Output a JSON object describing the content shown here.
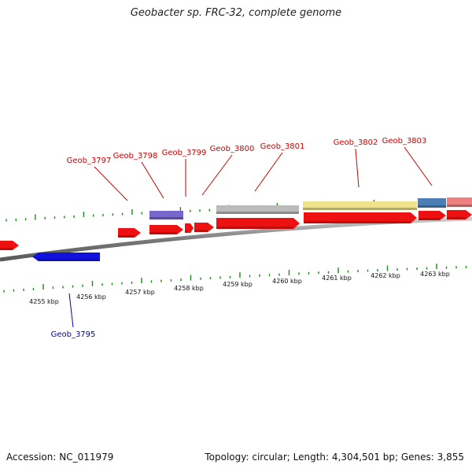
{
  "title": "Geobacter sp. FRC-32, complete genome",
  "footer": {
    "accession": "Accession: NC_011979",
    "summary": "Topology: circular; Length: 4,304,501 bp; Genes: 3,855"
  },
  "colors": {
    "tick": "#1a8a1a",
    "backbone": "#8c8c8c",
    "forward_gene": "#ee1111",
    "reverse_gene": "#1111dd",
    "forward_label": "#cc0000",
    "reverse_label": "#0000bb"
  },
  "scale": {
    "labels": [
      {
        "text": "4255 kbp",
        "kbp": 4255
      },
      {
        "text": "4256 kbp",
        "kbp": 4256
      },
      {
        "text": "4257 kbp",
        "kbp": 4257
      },
      {
        "text": "4258 kbp",
        "kbp": 4258
      },
      {
        "text": "4259 kbp",
        "kbp": 4259
      },
      {
        "text": "4260 kbp",
        "kbp": 4260
      },
      {
        "text": "4261 kbp",
        "kbp": 4261
      },
      {
        "text": "4262 kbp",
        "kbp": 4262
      },
      {
        "text": "4263 kbp",
        "kbp": 4263
      }
    ]
  },
  "genes": [
    {
      "name": "Geob_3795",
      "strand": "reverse",
      "labeled": true
    },
    {
      "name": "",
      "strand": "forward",
      "labeled": false
    },
    {
      "name": "Geob_3797",
      "strand": "forward",
      "labeled": true
    },
    {
      "name": "Geob_3798",
      "strand": "forward",
      "labeled": true
    },
    {
      "name": "Geob_3799",
      "strand": "forward",
      "labeled": true
    },
    {
      "name": "Geob_3800",
      "strand": "forward",
      "labeled": true
    },
    {
      "name": "Geob_3801",
      "strand": "forward",
      "labeled": true
    },
    {
      "name": "Geob_3802",
      "strand": "forward",
      "labeled": true
    },
    {
      "name": "Geob_3803",
      "strand": "forward",
      "labeled": true
    },
    {
      "name": "",
      "strand": "forward",
      "labeled": false
    }
  ],
  "features": [
    {
      "gene": "Geob_3798",
      "color": "#7766cc"
    },
    {
      "gene": "Geob_3801",
      "color": "#bbbbbb"
    },
    {
      "gene": "Geob_3802",
      "color": "#eee28a"
    },
    {
      "gene": "Geob_3803",
      "color": "#4a7fb5"
    },
    {
      "gene": "next",
      "color": "#ee8080"
    }
  ]
}
